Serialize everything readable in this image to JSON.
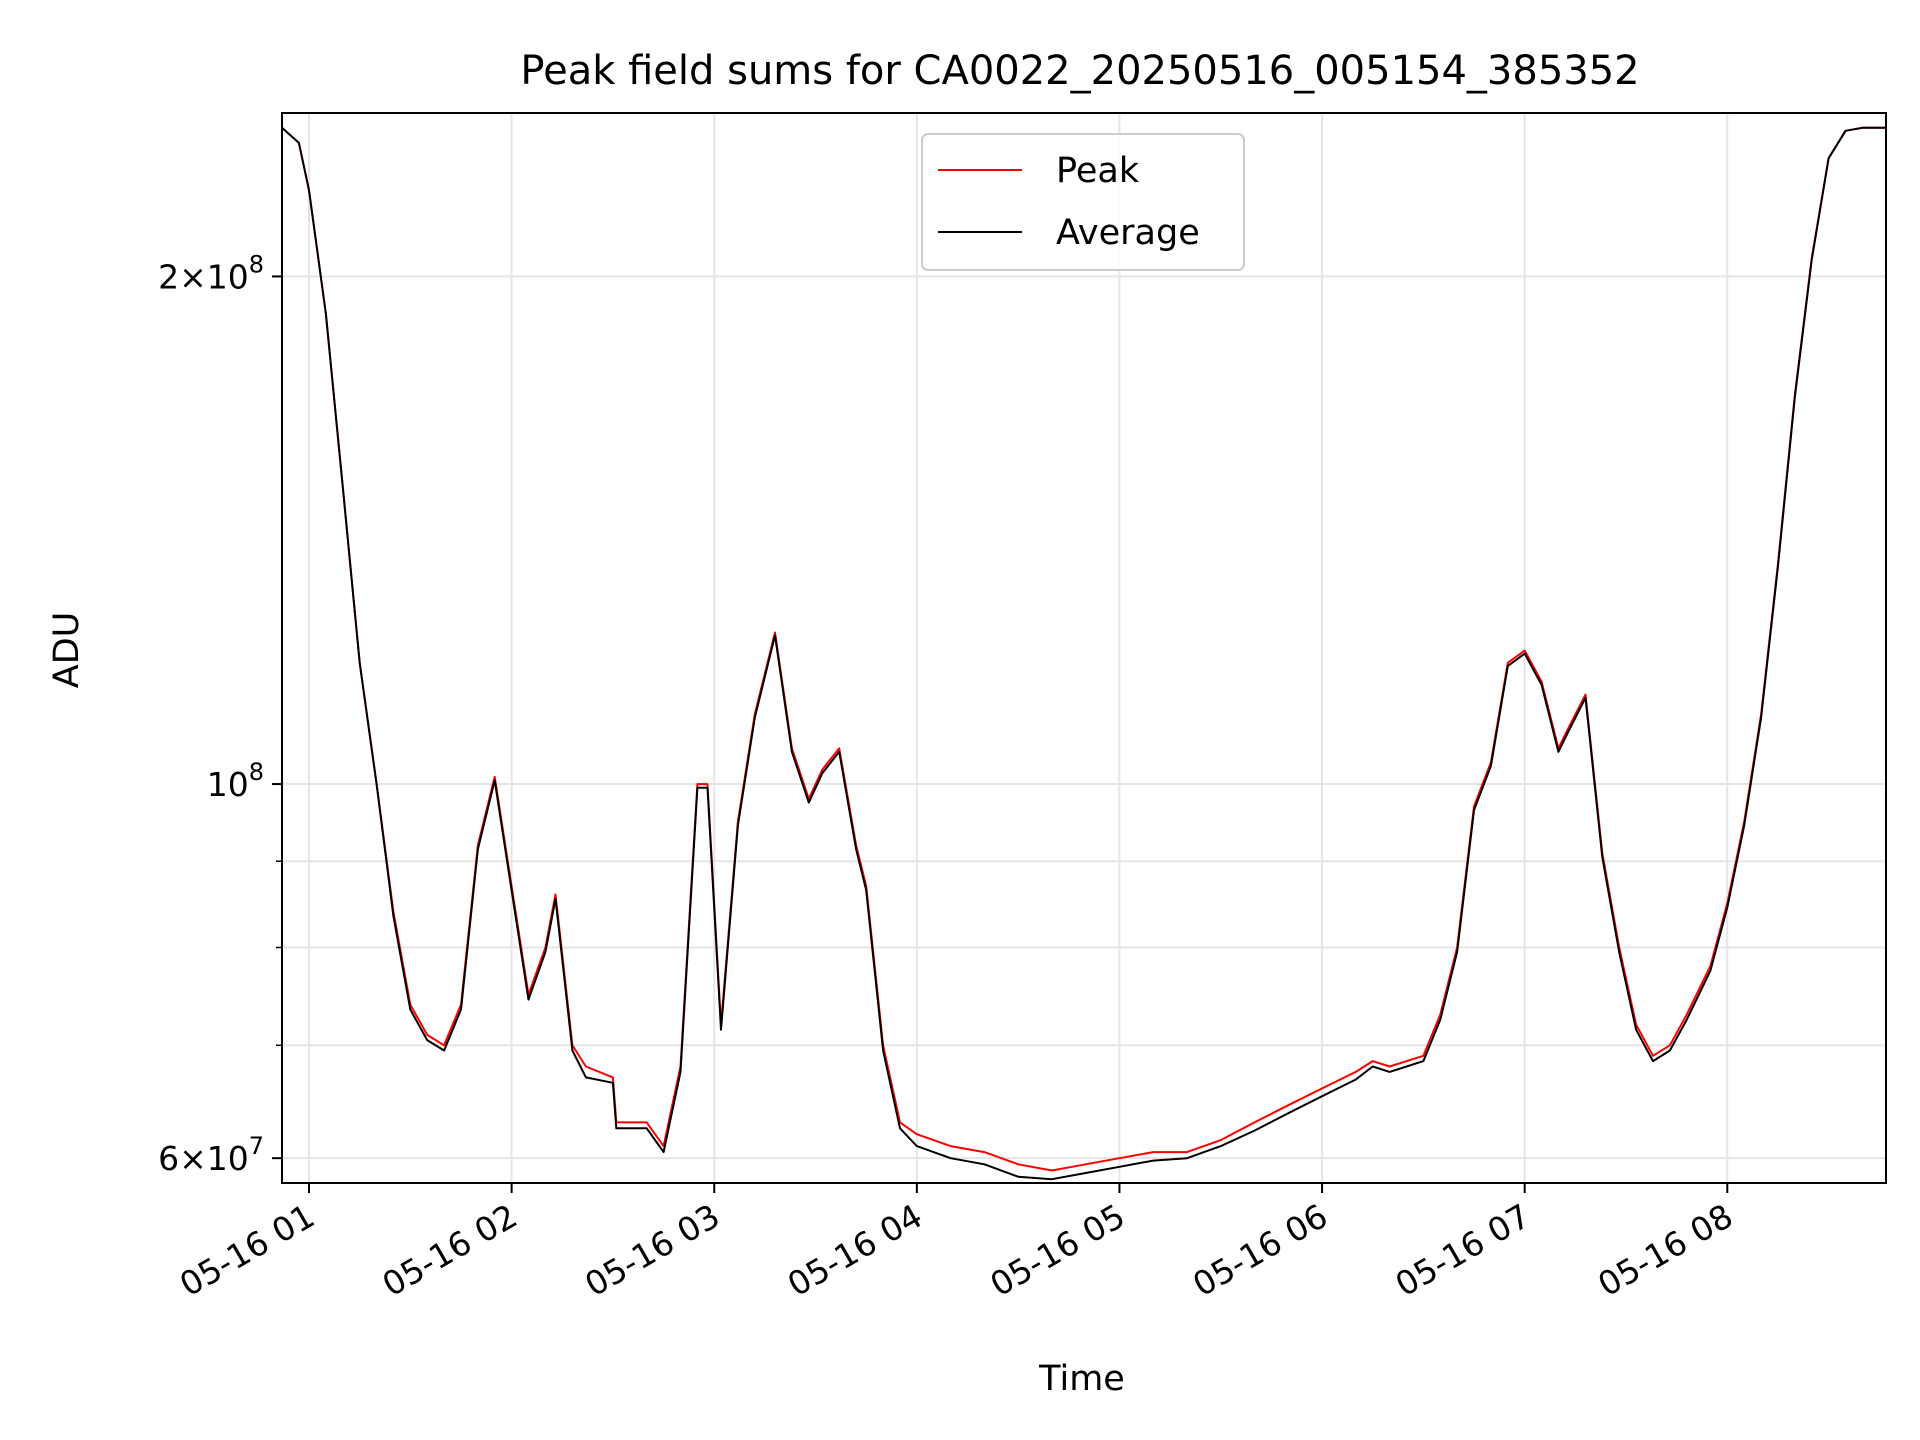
{
  "chart_data": {
    "type": "line",
    "title": "Peak field sums for CA0022_20250516_005154_385352",
    "xlabel": "Time",
    "ylabel": "ADU",
    "yscale": "log",
    "grid": true,
    "legend_placement": "upper-center",
    "xlim": [
      "05-16 00:52",
      "05-16 08:47"
    ],
    "ylim": [
      58000000.0,
      250000000.0
    ],
    "x_ticks": [
      "05-16 01",
      "05-16 02",
      "05-16 03",
      "05-16 04",
      "05-16 05",
      "05-16 06",
      "05-16 07",
      "05-16 08"
    ],
    "y_ticks": [
      {
        "value": 60000000,
        "mantissa": "6",
        "exponent": "7"
      },
      {
        "value": 100000000,
        "mantissa": "",
        "exponent": "8"
      },
      {
        "value": 200000000,
        "mantissa": "2",
        "exponent": "8"
      }
    ],
    "series": [
      {
        "name": "Peak",
        "color": "#ff0000",
        "x": [
          "05-16 00:52",
          "05-16 00:57",
          "05-16 01:00",
          "05-16 01:05",
          "05-16 01:10",
          "05-16 01:15",
          "05-16 01:20",
          "05-16 01:25",
          "05-16 01:30",
          "05-16 01:35",
          "05-16 01:40",
          "05-16 01:45",
          "05-16 01:50",
          "05-16 01:55",
          "05-16 02:00",
          "05-16 02:05",
          "05-16 02:10",
          "05-16 02:13",
          "05-16 02:18",
          "05-16 02:22",
          "05-16 02:30",
          "05-16 02:31",
          "05-16 02:40",
          "05-16 02:45",
          "05-16 02:50",
          "05-16 02:55",
          "05-16 02:58",
          "05-16 03:02",
          "05-16 03:07",
          "05-16 03:12",
          "05-16 03:18",
          "05-16 03:23",
          "05-16 03:28",
          "05-16 03:32",
          "05-16 03:37",
          "05-16 03:42",
          "05-16 03:45",
          "05-16 03:50",
          "05-16 03:55",
          "05-16 04:00",
          "05-16 04:10",
          "05-16 04:20",
          "05-16 04:30",
          "05-16 04:40",
          "05-16 04:50",
          "05-16 05:00",
          "05-16 05:10",
          "05-16 05:20",
          "05-16 05:30",
          "05-16 05:40",
          "05-16 05:50",
          "05-16 06:00",
          "05-16 06:10",
          "05-16 06:15",
          "05-16 06:20",
          "05-16 06:30",
          "05-16 06:35",
          "05-16 06:40",
          "05-16 06:45",
          "05-16 06:50",
          "05-16 06:55",
          "05-16 07:00",
          "05-16 07:05",
          "05-16 07:10",
          "05-16 07:13",
          "05-16 07:18",
          "05-16 07:23",
          "05-16 07:28",
          "05-16 07:33",
          "05-16 07:38",
          "05-16 07:43",
          "05-16 07:48",
          "05-16 07:55",
          "05-16 08:00",
          "05-16 08:05",
          "05-16 08:10",
          "05-16 08:15",
          "05-16 08:20",
          "05-16 08:25",
          "05-16 08:30",
          "05-16 08:35",
          "05-16 08:40",
          "05-16 08:47"
        ],
        "y": [
          245000000,
          240000000,
          225000000,
          190000000,
          150000000,
          118000000,
          100000000,
          84000000,
          74000000,
          71000000,
          70000000,
          74000000,
          92000000,
          101000000,
          87000000,
          75000000,
          80000000,
          86000000,
          70000000,
          68000000,
          67000000,
          63000000,
          63000000,
          61000000,
          68000000,
          100000000,
          100000000,
          72000000,
          95000000,
          110000000,
          123000000,
          105000000,
          98000000,
          102000000,
          105000000,
          92000000,
          87000000,
          70000000,
          63000000,
          62000000,
          61000000,
          60500000,
          59500000,
          59000000,
          59500000,
          60000000,
          60500000,
          60500000,
          61500000,
          63000000,
          64500000,
          66000000,
          67500000,
          68500000,
          68000000,
          69000000,
          73000000,
          80000000,
          97000000,
          103000000,
          118000000,
          120000000,
          115000000,
          105000000,
          108000000,
          113000000,
          91000000,
          80000000,
          72000000,
          69000000,
          70000000,
          73000000,
          78000000,
          85000000,
          95000000,
          110000000,
          135000000,
          170000000,
          205000000,
          235000000,
          244000000,
          245000000,
          245000000
        ]
      },
      {
        "name": "Average",
        "color": "#000000",
        "x": [
          "05-16 00:52",
          "05-16 00:57",
          "05-16 01:00",
          "05-16 01:05",
          "05-16 01:10",
          "05-16 01:15",
          "05-16 01:20",
          "05-16 01:25",
          "05-16 01:30",
          "05-16 01:35",
          "05-16 01:40",
          "05-16 01:45",
          "05-16 01:50",
          "05-16 01:55",
          "05-16 02:00",
          "05-16 02:05",
          "05-16 02:10",
          "05-16 02:13",
          "05-16 02:18",
          "05-16 02:22",
          "05-16 02:30",
          "05-16 02:31",
          "05-16 02:40",
          "05-16 02:45",
          "05-16 02:50",
          "05-16 02:55",
          "05-16 02:58",
          "05-16 03:02",
          "05-16 03:07",
          "05-16 03:12",
          "05-16 03:18",
          "05-16 03:23",
          "05-16 03:28",
          "05-16 03:32",
          "05-16 03:37",
          "05-16 03:42",
          "05-16 03:45",
          "05-16 03:50",
          "05-16 03:55",
          "05-16 04:00",
          "05-16 04:10",
          "05-16 04:20",
          "05-16 04:30",
          "05-16 04:40",
          "05-16 04:50",
          "05-16 05:00",
          "05-16 05:10",
          "05-16 05:20",
          "05-16 05:30",
          "05-16 05:40",
          "05-16 05:50",
          "05-16 06:00",
          "05-16 06:10",
          "05-16 06:15",
          "05-16 06:20",
          "05-16 06:30",
          "05-16 06:35",
          "05-16 06:40",
          "05-16 06:45",
          "05-16 06:50",
          "05-16 06:55",
          "05-16 07:00",
          "05-16 07:05",
          "05-16 07:10",
          "05-16 07:13",
          "05-16 07:18",
          "05-16 07:23",
          "05-16 07:28",
          "05-16 07:33",
          "05-16 07:38",
          "05-16 07:43",
          "05-16 07:48",
          "05-16 07:55",
          "05-16 08:00",
          "05-16 08:05",
          "05-16 08:10",
          "05-16 08:15",
          "05-16 08:20",
          "05-16 08:25",
          "05-16 08:30",
          "05-16 08:35",
          "05-16 08:40",
          "05-16 08:47"
        ],
        "y": [
          245000000,
          240000000,
          225000000,
          190000000,
          150000000,
          118000000,
          100000000,
          83500000,
          73500000,
          70500000,
          69500000,
          73500000,
          91500000,
          100500000,
          86500000,
          74500000,
          79500000,
          85500000,
          69500000,
          67000000,
          66500000,
          62500000,
          62500000,
          60500000,
          67500000,
          99500000,
          99500000,
          71500000,
          94500000,
          109500000,
          122500000,
          104500000,
          97500000,
          101500000,
          104500000,
          91500000,
          86500000,
          69500000,
          62500000,
          61000000,
          60000000,
          59500000,
          58500000,
          58300000,
          58800000,
          59300000,
          59800000,
          60000000,
          61000000,
          62300000,
          63800000,
          65300000,
          66800000,
          68000000,
          67500000,
          68500000,
          72500000,
          79500000,
          96500000,
          102500000,
          117500000,
          119500000,
          114500000,
          104500000,
          107500000,
          112500000,
          90500000,
          79500000,
          71500000,
          68500000,
          69500000,
          72500000,
          77500000,
          84500000,
          94500000,
          109500000,
          134500000,
          169500000,
          204500000,
          235000000,
          244000000,
          245000000,
          245000000
        ]
      }
    ]
  }
}
